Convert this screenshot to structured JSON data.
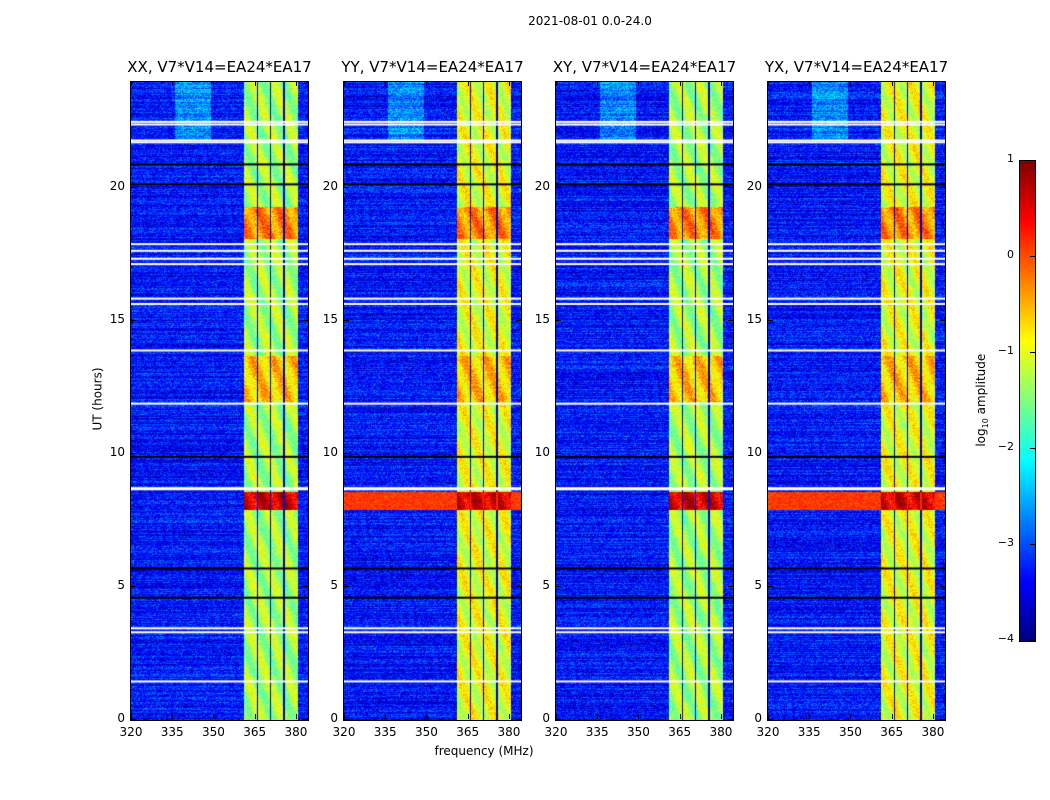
{
  "chart_data": {
    "type": "heatmap",
    "title": "2021-08-01 0.0-24.0",
    "xlabel": "frequency (MHz)",
    "ylabel": "UT (hours)",
    "xlim": [
      320,
      384.4
    ],
    "ylim": [
      0,
      24
    ],
    "xticks": [
      320,
      335,
      350,
      365,
      380
    ],
    "yticks": [
      0,
      5,
      10,
      15,
      20
    ],
    "panels": [
      {
        "title": "XX, V7*V14=EA24*EA17",
        "band_level": -1.3,
        "broadband_event": false
      },
      {
        "title": "YY, V7*V14=EA24*EA17",
        "band_level": -1.0,
        "broadband_event": true
      },
      {
        "title": "XY, V7*V14=EA24*EA17",
        "band_level": -1.3,
        "broadband_event": false
      },
      {
        "title": "YX, V7*V14=EA24*EA17",
        "band_level": -1.0,
        "broadband_event": true
      }
    ],
    "background_level": -3.3,
    "rfi_subbands_mhz": [
      [
        360.8,
        365.5
      ],
      [
        366.1,
        370.3
      ],
      [
        370.9,
        375.3
      ],
      [
        375.9,
        380.4
      ]
    ],
    "bright_intervals_hours": [
      [
        18.1,
        19.3,
        -0.3
      ],
      [
        12.0,
        13.7,
        -0.6
      ],
      [
        7.9,
        8.6,
        0.6
      ]
    ],
    "flagged_white_hours": [
      22.5,
      22.4,
      21.8,
      21.73,
      17.9,
      17.65,
      17.35,
      17.15,
      15.85,
      15.65,
      13.9,
      11.9,
      8.72,
      8.68,
      3.45,
      3.3,
      1.45
    ],
    "flagged_black_hours": [
      20.9,
      20.15,
      9.9,
      5.7,
      4.6
    ],
    "colorbar": {
      "label": "log10 amplitude",
      "label_main": "log",
      "label_sub": "10",
      "label_rest": " amplitude",
      "range": [
        -4,
        1
      ],
      "ticks": [
        "1",
        "0",
        "−1",
        "−2",
        "−3",
        "−4"
      ],
      "colormap": "jet"
    }
  }
}
